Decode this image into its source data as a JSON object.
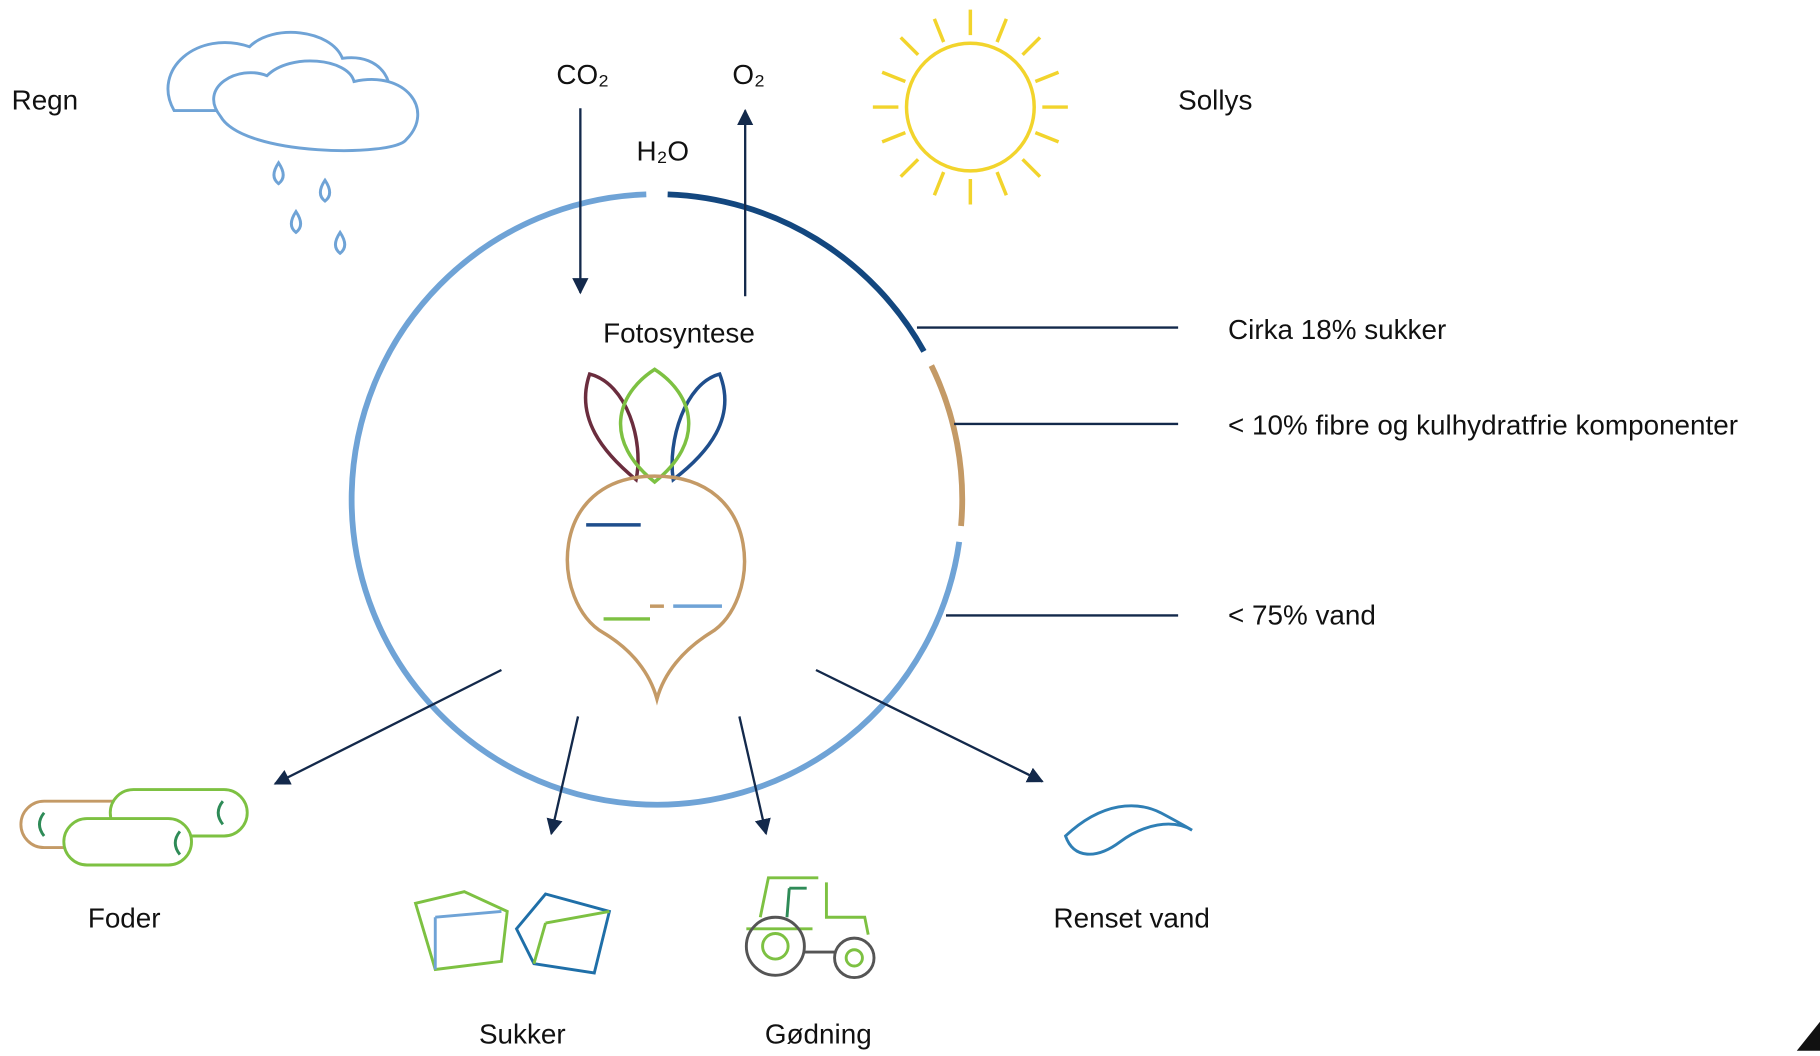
{
  "inputs": {
    "rain": "Regn",
    "sun": "Sollys",
    "co2": "CO₂",
    "o2": "O₂",
    "h2o": "H₂O"
  },
  "process": "Fotosyntese",
  "composition": [
    "Cirka 18% sukker",
    "< 10% fibre og kulhydratfrie komponenter",
    "< 75% vand"
  ],
  "outputs": [
    "Foder",
    "Sukker",
    "Gødning",
    "Renset vand"
  ]
}
